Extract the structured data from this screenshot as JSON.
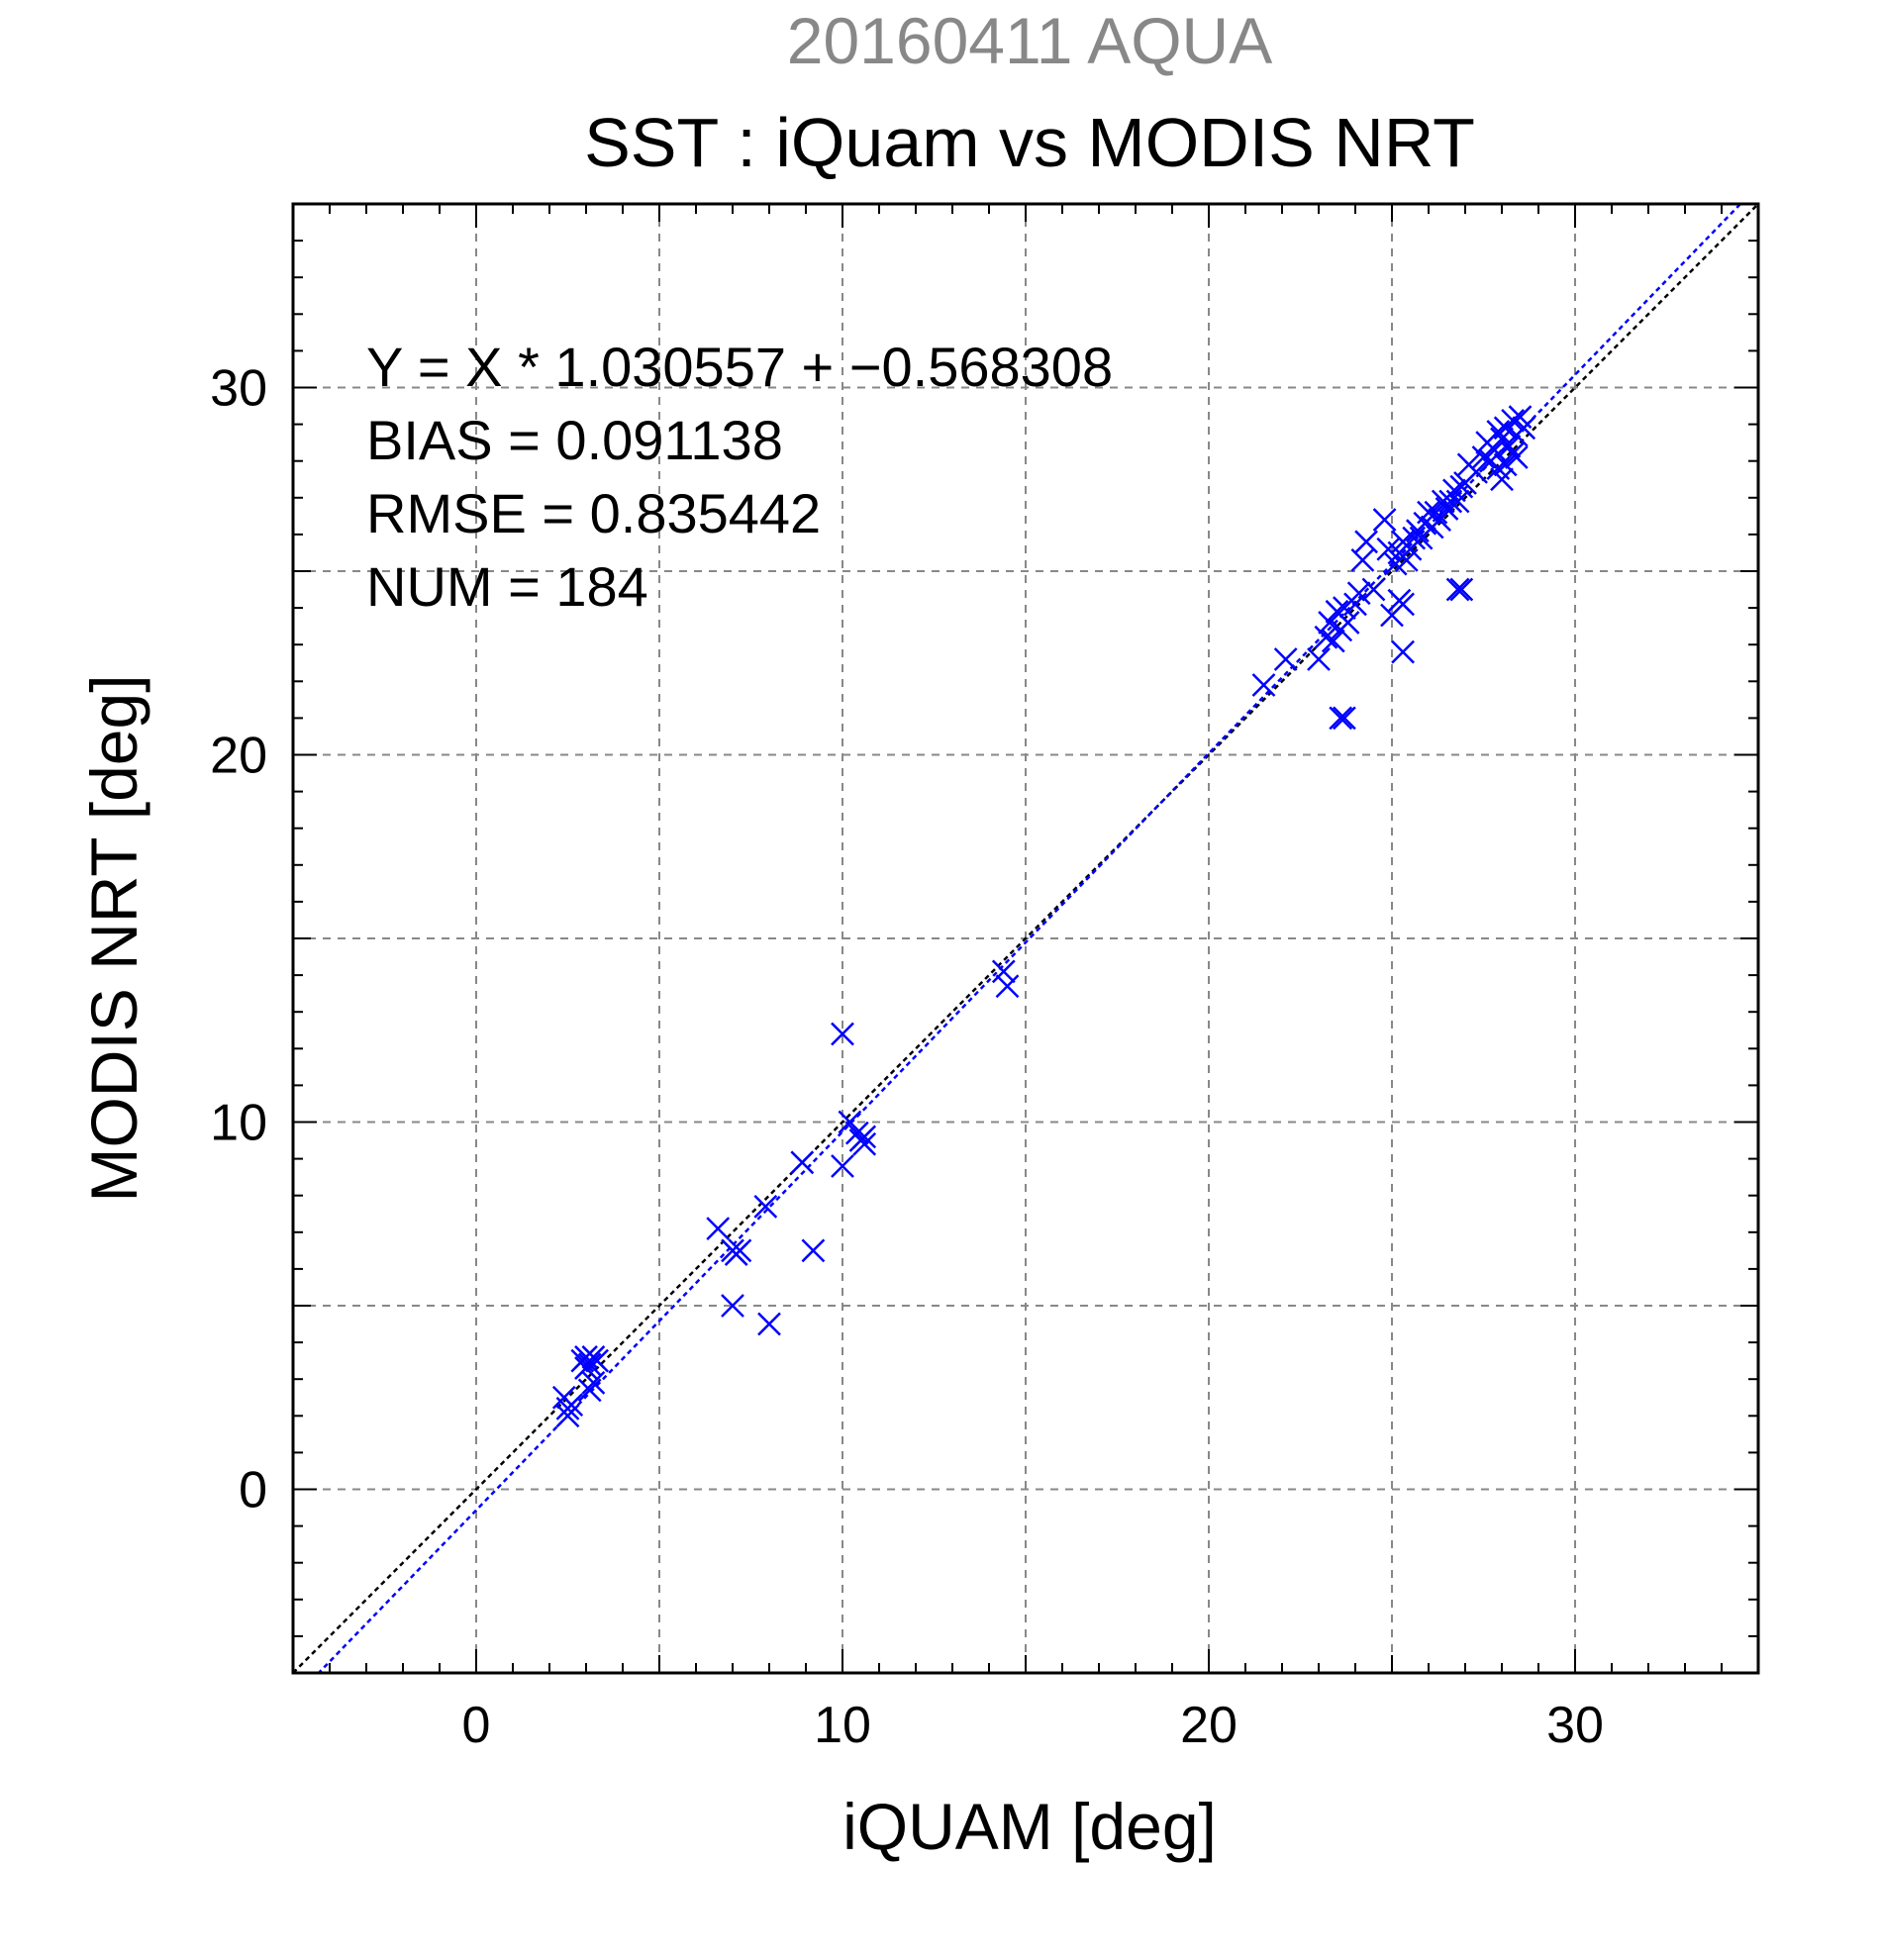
{
  "header": {
    "top_title": "20160411 AQUA",
    "title": "SST : iQuam vs MODIS NRT"
  },
  "annotations": {
    "equation": "Y = X * 1.030557 + −0.568308",
    "bias": "BIAS = 0.091138",
    "rmse": "RMSE = 0.835442",
    "num": "NUM = 184"
  },
  "colors": {
    "points": "#0000ff",
    "fit_line": "#0000ff",
    "identity_line": "#000000",
    "grid": "#888888",
    "top_title": "#888888"
  },
  "chart_data": {
    "type": "scatter",
    "title": "SST : iQuam vs MODIS NRT",
    "subtitle": "20160411 AQUA",
    "xlabel": "iQUAM [deg]",
    "ylabel": "MODIS NRT [deg]",
    "xlim": [
      -5,
      35
    ],
    "ylim": [
      -5,
      35
    ],
    "xticks": [
      0,
      10,
      20,
      30
    ],
    "yticks": [
      0,
      10,
      20,
      30
    ],
    "grid": true,
    "marker": "x",
    "fit": {
      "slope": 1.030557,
      "intercept": -0.568308
    },
    "identity_line": true,
    "points": [
      [
        2.4,
        2.5
      ],
      [
        2.5,
        2.2
      ],
      [
        2.5,
        2.0
      ],
      [
        2.6,
        2.3
      ],
      [
        2.9,
        3.5
      ],
      [
        3.0,
        3.3
      ],
      [
        3.0,
        3.6
      ],
      [
        3.1,
        3.4
      ],
      [
        3.2,
        3.6
      ],
      [
        3.3,
        3.5
      ],
      [
        3.1,
        2.7
      ],
      [
        3.2,
        2.9
      ],
      [
        6.6,
        7.1
      ],
      [
        7.0,
        6.5
      ],
      [
        7.1,
        6.4
      ],
      [
        7.2,
        6.5
      ],
      [
        7.0,
        5.0
      ],
      [
        7.9,
        7.7
      ],
      [
        8.0,
        4.5
      ],
      [
        9.2,
        6.5
      ],
      [
        8.9,
        8.9
      ],
      [
        10.0,
        12.4
      ],
      [
        10.0,
        8.8
      ],
      [
        10.2,
        10.0
      ],
      [
        10.4,
        9.7
      ],
      [
        10.5,
        9.5
      ],
      [
        10.6,
        9.4
      ],
      [
        10.6,
        9.6
      ],
      [
        14.4,
        14.1
      ],
      [
        14.5,
        13.7
      ],
      [
        21.5,
        21.9
      ],
      [
        22.1,
        22.6
      ],
      [
        23.0,
        22.6
      ],
      [
        23.2,
        23.2
      ],
      [
        23.3,
        23.6
      ],
      [
        23.4,
        23.1
      ],
      [
        23.5,
        23.9
      ],
      [
        23.6,
        23.4
      ],
      [
        23.7,
        24.0
      ],
      [
        23.8,
        23.6
      ],
      [
        23.6,
        21.0
      ],
      [
        23.7,
        21.0
      ],
      [
        24.0,
        24.1
      ],
      [
        24.1,
        24.4
      ],
      [
        24.2,
        25.3
      ],
      [
        24.3,
        25.8
      ],
      [
        24.5,
        24.5
      ],
      [
        24.8,
        26.4
      ],
      [
        24.9,
        25.6
      ],
      [
        25.0,
        23.8
      ],
      [
        25.2,
        24.2
      ],
      [
        25.3,
        24.1
      ],
      [
        25.3,
        22.8
      ],
      [
        25.1,
        25.2
      ],
      [
        25.2,
        25.5
      ],
      [
        25.3,
        25.8
      ],
      [
        25.4,
        25.3
      ],
      [
        25.5,
        25.6
      ],
      [
        25.6,
        25.9
      ],
      [
        25.7,
        26.1
      ],
      [
        25.8,
        25.9
      ],
      [
        25.9,
        26.3
      ],
      [
        26.0,
        26.6
      ],
      [
        26.1,
        26.2
      ],
      [
        26.2,
        26.6
      ],
      [
        26.3,
        26.4
      ],
      [
        26.4,
        26.9
      ],
      [
        26.5,
        26.7
      ],
      [
        26.6,
        26.9
      ],
      [
        26.7,
        27.2
      ],
      [
        26.8,
        24.5
      ],
      [
        26.9,
        24.5
      ],
      [
        26.8,
        26.9
      ],
      [
        26.9,
        27.3
      ],
      [
        27.0,
        27.4
      ],
      [
        27.1,
        27.9
      ],
      [
        27.3,
        27.7
      ],
      [
        27.5,
        28.1
      ],
      [
        27.6,
        28.5
      ],
      [
        27.7,
        28.0
      ],
      [
        27.8,
        28.3
      ],
      [
        27.9,
        28.8
      ],
      [
        28.0,
        28.6
      ],
      [
        28.0,
        27.5
      ],
      [
        28.1,
        28.9
      ],
      [
        28.2,
        28.4
      ],
      [
        28.3,
        29.1
      ],
      [
        28.4,
        28.7
      ],
      [
        28.5,
        29.2
      ],
      [
        28.4,
        28.1
      ],
      [
        28.6,
        28.9
      ],
      [
        27.9,
        27.8
      ],
      [
        28.1,
        27.9
      ],
      [
        28.3,
        28.2
      ]
    ]
  }
}
